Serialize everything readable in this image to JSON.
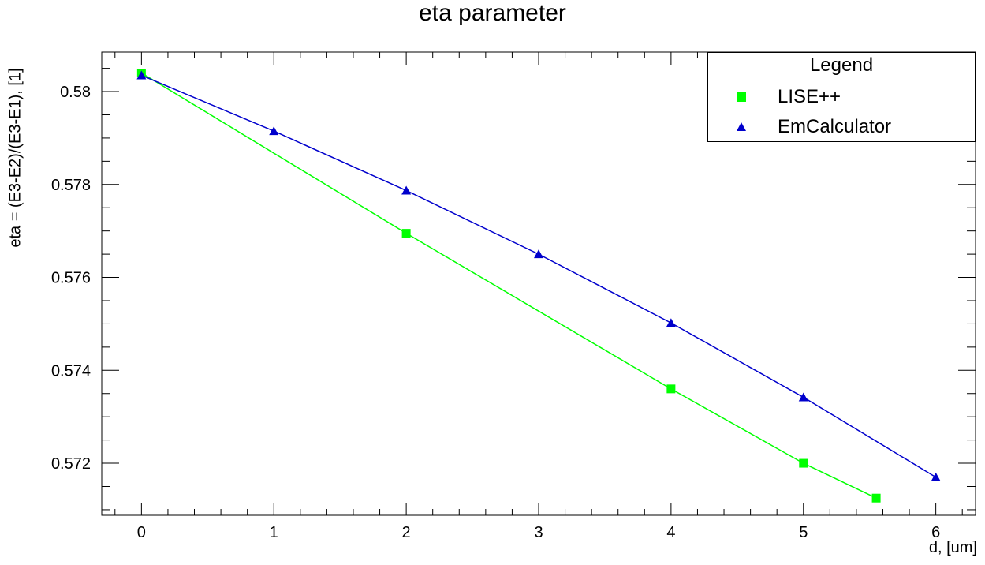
{
  "chart_data": {
    "type": "line",
    "title": "eta parameter",
    "xlabel": "d, [um]",
    "ylabel": "eta = (E3-E2)/(E3-E1), [1]",
    "xlim": [
      -0.3,
      6.3
    ],
    "ylim": [
      0.57088,
      0.58085
    ],
    "xticks": [
      0,
      1,
      2,
      3,
      4,
      5,
      6
    ],
    "xtick_labels": [
      "0",
      "1",
      "2",
      "3",
      "4",
      "5",
      "6"
    ],
    "yticks": [
      0.572,
      0.574,
      0.576,
      0.578,
      0.58
    ],
    "ytick_labels": [
      "0.572",
      "0.574",
      "0.576",
      "0.578",
      "0.58"
    ],
    "grid": false,
    "legend_title": "Legend",
    "legend_position": "top-right",
    "series": [
      {
        "name": "LISE++",
        "color": "#00ff00",
        "marker": "square",
        "x": [
          0,
          2,
          4,
          5,
          5.55
        ],
        "y": [
          0.5804,
          0.57695,
          0.5736,
          0.572,
          0.57125
        ]
      },
      {
        "name": "EmCalculator",
        "color": "#0000cc",
        "marker": "triangle",
        "x": [
          0,
          1,
          2,
          3,
          4,
          5,
          6
        ],
        "y": [
          0.58035,
          0.57915,
          0.57787,
          0.5765,
          0.57502,
          0.57342,
          0.5717
        ]
      }
    ]
  }
}
